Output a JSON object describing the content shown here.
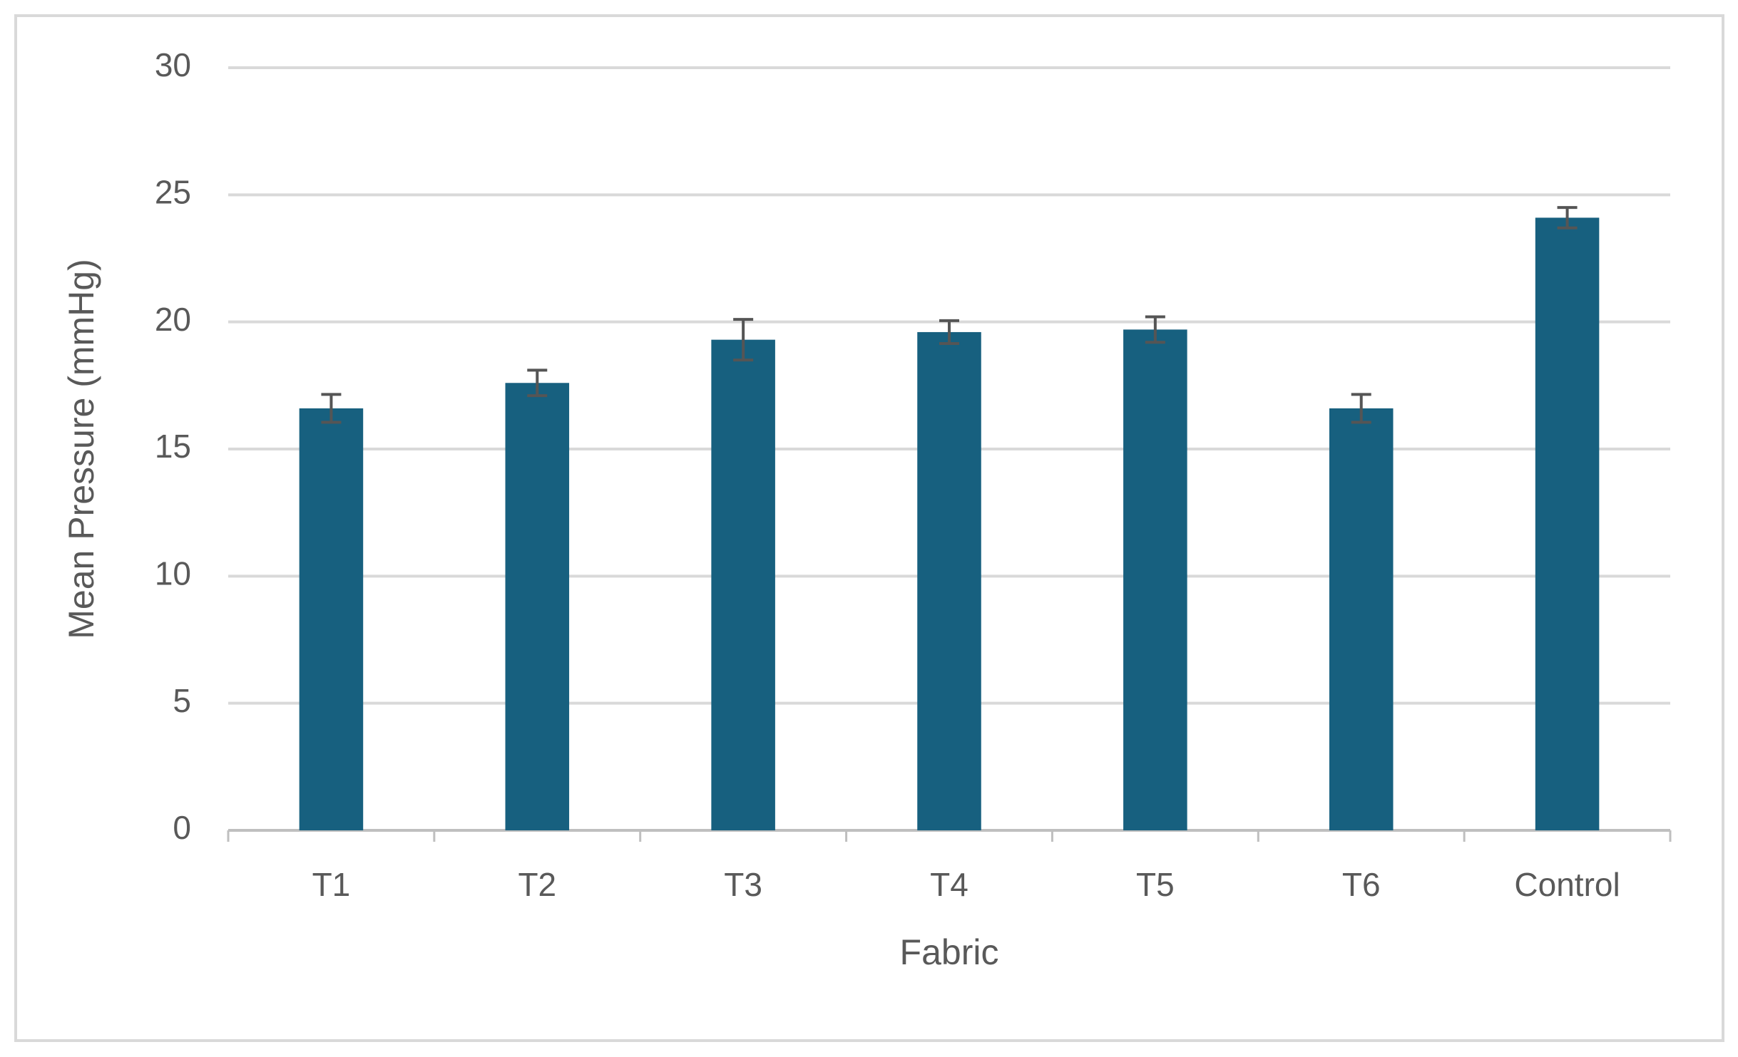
{
  "chart_data": {
    "type": "bar",
    "x_label": "Fabric",
    "y_label": "Mean Pressure (mmHg)",
    "categories": [
      "T1",
      "T2",
      "T3",
      "T4",
      "T5",
      "T6",
      "Control"
    ],
    "values": [
      16.6,
      17.6,
      19.3,
      19.6,
      19.7,
      16.6,
      24.1
    ],
    "errors": [
      0.55,
      0.5,
      0.8,
      0.45,
      0.5,
      0.55,
      0.4
    ],
    "color": "#17607f",
    "error_color": "#555555",
    "ylim": [
      0,
      30
    ],
    "yticks": [
      0,
      5,
      10,
      15,
      20,
      25,
      30
    ],
    "grid": true
  }
}
